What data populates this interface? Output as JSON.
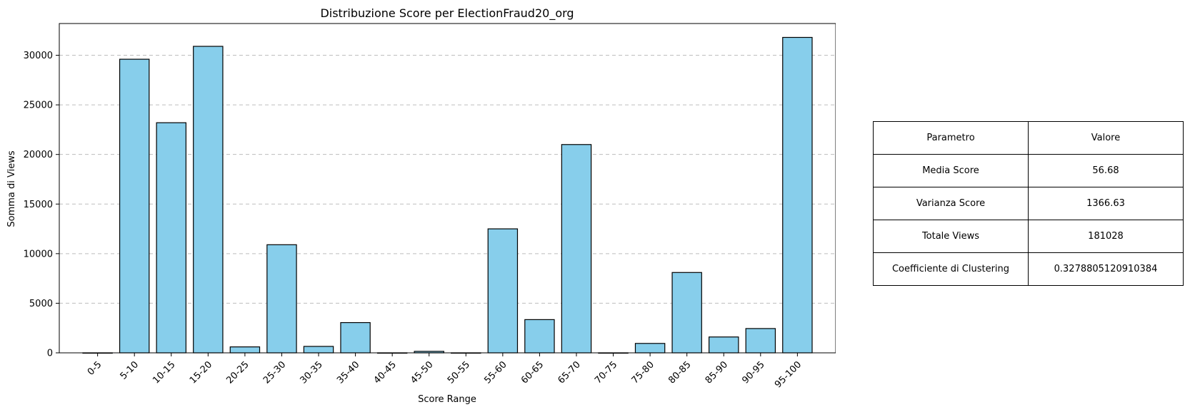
{
  "chart_data": {
    "type": "bar",
    "title": "Distribuzione Score per ElectionFraud20_org",
    "xlabel": "Score Range",
    "ylabel": "Somma di Views",
    "categories": [
      "0-5",
      "5-10",
      "10-15",
      "15-20",
      "20-25",
      "25-30",
      "30-35",
      "35-40",
      "40-45",
      "45-50",
      "50-55",
      "55-60",
      "60-65",
      "65-70",
      "70-75",
      "75-80",
      "80-85",
      "85-90",
      "90-95",
      "95-100"
    ],
    "values": [
      0,
      29600,
      23200,
      30900,
      600,
      10900,
      650,
      3050,
      0,
      150,
      0,
      12500,
      3350,
      21000,
      0,
      950,
      8100,
      1600,
      2450,
      31800
    ],
    "ylim": [
      0,
      33200
    ],
    "yticks": [
      0,
      5000,
      10000,
      15000,
      20000,
      25000,
      30000
    ],
    "ytick_labels": [
      "0",
      "5000",
      "10000",
      "15000",
      "20000",
      "25000",
      "30000"
    ],
    "grid": "y-dashed",
    "bar_color": "#87CEEB",
    "edge_color": "#000000"
  },
  "table": {
    "header": [
      "Parametro",
      "Valore"
    ],
    "rows": [
      [
        "Media Score",
        "56.68"
      ],
      [
        "Varianza Score",
        "1366.63"
      ],
      [
        "Totale Views",
        "181028"
      ],
      [
        "Coefficiente di Clustering",
        "0.3278805120910384"
      ]
    ]
  }
}
